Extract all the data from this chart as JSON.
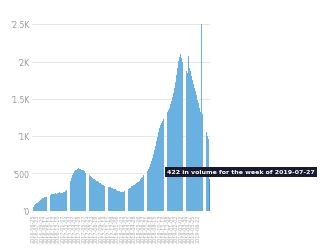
{
  "title": "",
  "bar_color": "#6ab0e0",
  "background_color": "#ffffff",
  "tooltip_text": "422 in volume for the week of 2019-07-27",
  "tooltip_bg": "#1a1a2e",
  "tooltip_text_color": "#ffffff",
  "ylabel_color": "#999999",
  "tick_color": "#aaaaaa",
  "ylim": [
    0,
    2700
  ],
  "yticks": [
    0,
    500,
    1000,
    1500,
    2000,
    2500
  ],
  "ytick_labels": [
    "’0",
    "’500",
    "’1K",
    "’1.5K",
    "’2K",
    "’2.5K"
  ],
  "dates": [
    "2016-06-25",
    "2016-07-02",
    "2016-07-09",
    "2016-07-16",
    "2016-07-23",
    "2016-07-30",
    "2016-08-06",
    "2016-08-13",
    "2016-08-20",
    "2016-08-27",
    "2016-09-03",
    "2016-09-10",
    "2016-09-17",
    "2016-09-24",
    "2016-10-01",
    "2016-10-08",
    "2016-10-15",
    "2016-10-22",
    "2016-10-29",
    "2016-11-05",
    "2016-11-12",
    "2016-11-19",
    "2016-11-26",
    "2016-12-03",
    "2016-12-10",
    "2016-12-17",
    "2016-12-24",
    "2016-12-31",
    "2017-01-07",
    "2017-01-14",
    "2017-01-21",
    "2017-01-28",
    "2017-02-04",
    "2017-02-11",
    "2017-02-18",
    "2017-02-25",
    "2017-03-04",
    "2017-03-11",
    "2017-03-18",
    "2017-03-25",
    "2017-04-01",
    "2017-04-08",
    "2017-04-15",
    "2017-04-22",
    "2017-04-29",
    "2017-05-06",
    "2017-05-13",
    "2017-05-20",
    "2017-05-27",
    "2017-06-03",
    "2017-06-10",
    "2017-06-17",
    "2017-06-24",
    "2017-07-01",
    "2017-07-08",
    "2017-07-15",
    "2017-07-22",
    "2017-07-29",
    "2017-08-05",
    "2017-08-12",
    "2017-08-19",
    "2017-08-26",
    "2017-09-02",
    "2017-09-09",
    "2017-09-16",
    "2017-09-23",
    "2017-09-30",
    "2017-10-07",
    "2017-10-14",
    "2017-10-21",
    "2017-10-28",
    "2017-11-04",
    "2017-11-11",
    "2017-11-18",
    "2017-11-25",
    "2017-12-02",
    "2017-12-09",
    "2017-12-16",
    "2017-12-23",
    "2017-12-30",
    "2018-01-06",
    "2018-01-13",
    "2018-01-20",
    "2018-01-27",
    "2018-02-03",
    "2018-02-10",
    "2018-02-17",
    "2018-02-24",
    "2018-03-03",
    "2018-03-10",
    "2018-03-17",
    "2018-03-24",
    "2018-03-31",
    "2018-04-07",
    "2018-04-14",
    "2018-04-21",
    "2018-04-28",
    "2018-05-05",
    "2018-05-12",
    "2018-05-19",
    "2018-05-26",
    "2018-06-02",
    "2018-06-09",
    "2018-06-16",
    "2018-06-23",
    "2018-06-30",
    "2018-07-07",
    "2018-07-14",
    "2018-07-21",
    "2018-07-28",
    "2018-08-04",
    "2018-08-11",
    "2018-08-18",
    "2018-08-25",
    "2018-09-01",
    "2018-09-08",
    "2018-09-15",
    "2018-09-22",
    "2018-09-29",
    "2018-10-06",
    "2018-10-13",
    "2018-10-20",
    "2018-10-27",
    "2018-11-03",
    "2018-11-10",
    "2018-11-17",
    "2018-11-24",
    "2018-12-01",
    "2018-12-08",
    "2018-12-15",
    "2018-12-22",
    "2018-12-29",
    "2019-01-05",
    "2019-01-12",
    "2019-01-19",
    "2019-01-26",
    "2019-02-02",
    "2019-02-09",
    "2019-02-16",
    "2019-02-23",
    "2019-03-02",
    "2019-03-09",
    "2019-03-16",
    "2019-03-23",
    "2019-03-30",
    "2019-04-06",
    "2019-04-13",
    "2019-04-20",
    "2019-04-27",
    "2019-05-04",
    "2019-05-11",
    "2019-05-18",
    "2019-05-25",
    "2019-06-01",
    "2019-06-08",
    "2019-06-15",
    "2019-06-22",
    "2019-06-29",
    "2019-07-06",
    "2019-07-13",
    "2019-07-20",
    "2019-07-27"
  ],
  "values": [
    55,
    75,
    95,
    105,
    110,
    115,
    130,
    150,
    160,
    165,
    170,
    180,
    185,
    190,
    200,
    210,
    215,
    220,
    225,
    225,
    230,
    235,
    230,
    235,
    240,
    250,
    240,
    235,
    240,
    245,
    255,
    265,
    280,
    310,
    350,
    400,
    440,
    480,
    510,
    530,
    540,
    550,
    560,
    570,
    565,
    555,
    550,
    545,
    540,
    530,
    510,
    500,
    490,
    475,
    460,
    450,
    440,
    430,
    420,
    410,
    400,
    395,
    385,
    375,
    365,
    355,
    345,
    340,
    335,
    330,
    325,
    320,
    315,
    320,
    310,
    300,
    295,
    290,
    285,
    275,
    265,
    270,
    265,
    255,
    250,
    245,
    250,
    260,
    270,
    280,
    290,
    300,
    310,
    325,
    335,
    340,
    350,
    360,
    370,
    385,
    390,
    400,
    420,
    440,
    455,
    475,
    490,
    510,
    530,
    560,
    590,
    620,
    660,
    710,
    760,
    820,
    870,
    930,
    990,
    1060,
    1110,
    1150,
    1170,
    1200,
    1230,
    1260,
    1290,
    1320,
    1350,
    1380,
    1430,
    1470,
    1520,
    1580,
    1650,
    1730,
    1820,
    1910,
    2010,
    2060,
    2100,
    2050,
    2000,
    1960,
    1900,
    1870,
    1840,
    2080,
    1920,
    1870,
    1800,
    1750,
    1700,
    1650,
    1600,
    1550,
    1490,
    1440,
    1380,
    1320,
    2500,
    1300,
    1200,
    1120,
    1060,
    1000,
    960,
    422
  ],
  "tooltip_bar_index": -1,
  "highlight_bar_color": "#4a90d9"
}
